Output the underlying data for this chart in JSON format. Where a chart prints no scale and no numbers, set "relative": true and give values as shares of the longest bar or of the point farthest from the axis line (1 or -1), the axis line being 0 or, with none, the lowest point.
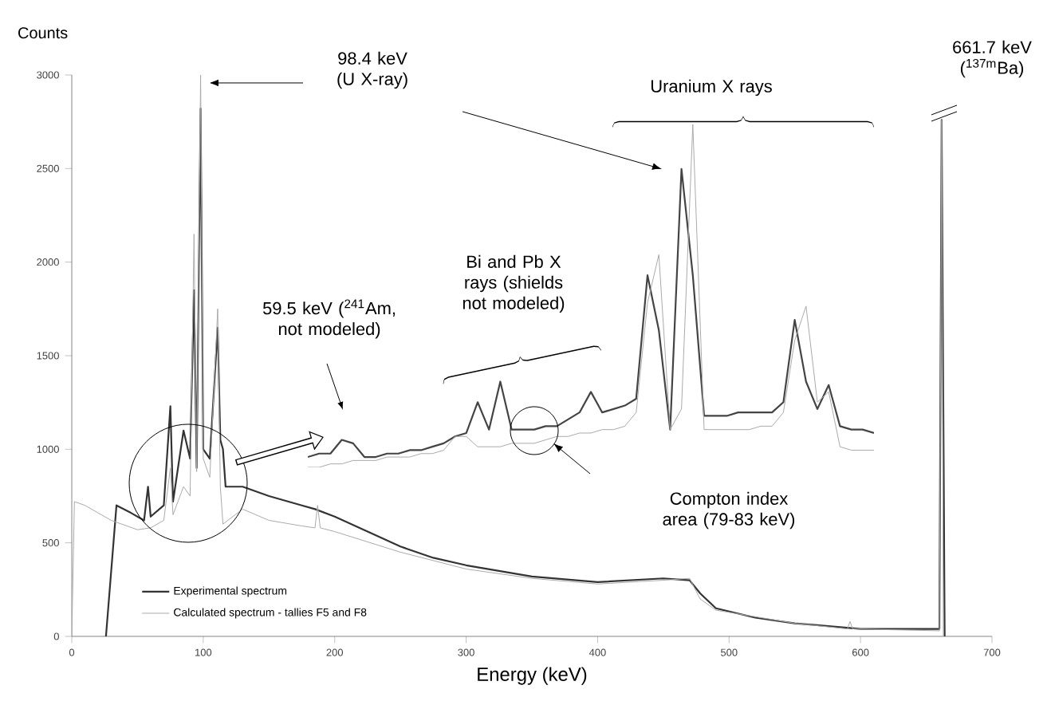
{
  "chart_data": [
    {
      "type": "line",
      "xlabel": "Energy (keV)",
      "ylabel": "Counts",
      "xlim": [
        0,
        700
      ],
      "ylim": [
        0,
        3000
      ],
      "xticks": [
        0,
        100,
        200,
        300,
        400,
        500,
        600,
        700
      ],
      "yticks": [
        0,
        500,
        1000,
        1500,
        2000,
        2500,
        3000
      ],
      "legend": "bottom left",
      "series": [
        {
          "name": "Experimental spectrum",
          "color": "#333333",
          "x": [
            26,
            34,
            45,
            55,
            58,
            60,
            70,
            75,
            77,
            85,
            90,
            93,
            95,
            98,
            100,
            105,
            111,
            113,
            115,
            117,
            130,
            150,
            175,
            185,
            200,
            225,
            250,
            275,
            300,
            350,
            400,
            450,
            470,
            478,
            490,
            520,
            550,
            600,
            660,
            661.7,
            664
          ],
          "values": [
            0,
            700,
            660,
            620,
            800,
            640,
            700,
            1230,
            720,
            1100,
            950,
            1850,
            900,
            2820,
            1000,
            950,
            1650,
            1050,
            1000,
            800,
            800,
            750,
            700,
            680,
            640,
            560,
            480,
            420,
            380,
            320,
            290,
            310,
            300,
            230,
            150,
            100,
            70,
            40,
            40,
            2760,
            0
          ]
        },
        {
          "name": "Calculated spectrum - tallies F5 and F8",
          "color": "#aaaaaa",
          "x": [
            0,
            2,
            10,
            30,
            50,
            60,
            70,
            75,
            77,
            85,
            90,
            93,
            95,
            98,
            100,
            105,
            111,
            113,
            115,
            130,
            150,
            175,
            185,
            187,
            189,
            200,
            250,
            300,
            350,
            400,
            450,
            470,
            478,
            490,
            550,
            590,
            592,
            594,
            660,
            661.7,
            663
          ],
          "values": [
            0,
            720,
            700,
            620,
            570,
            580,
            620,
            900,
            650,
            800,
            750,
            2150,
            880,
            3000,
            950,
            850,
            1750,
            800,
            600,
            680,
            620,
            590,
            580,
            700,
            580,
            560,
            450,
            360,
            310,
            280,
            300,
            310,
            200,
            140,
            70,
            40,
            80,
            40,
            30,
            2760,
            0
          ]
        }
      ],
      "annotations": [
        "98.4 keV (U X-ray)",
        "661.7 keV ($^{137m}$Ba)",
        "Uranium X rays",
        "59.5 keV ($^{241}$Am, not modeled)",
        "Bi and Pb X rays (shields not modeled)",
        "Compton index area (79-83 keV)"
      ]
    },
    {
      "type": "line",
      "relative": true,
      "categories": [
        null,
        null,
        null,
        null,
        null,
        null,
        null,
        null,
        null,
        null,
        null,
        null,
        null,
        null,
        null,
        null,
        null,
        null,
        null,
        null,
        null,
        null,
        null,
        null,
        null,
        null,
        null,
        null,
        null,
        null,
        null,
        null,
        null,
        null,
        null,
        null,
        null,
        null,
        null,
        null,
        null,
        null,
        null,
        null,
        null,
        null,
        null,
        null,
        null,
        null,
        null
      ],
      "series": [
        {
          "color": "#444444",
          "values": [
            0.03,
            0.04,
            0.04,
            0.08,
            0.07,
            0.03,
            0.03,
            0.04,
            0.04,
            0.05,
            0.05,
            0.06,
            0.07,
            0.09,
            0.1,
            0.19,
            0.11,
            0.25,
            0.11,
            0.11,
            0.11,
            0.12,
            0.12,
            0.14,
            0.16,
            0.22,
            0.16,
            0.17,
            0.18,
            0.2,
            0.56,
            0.4,
            0.11,
            0.87,
            0.56,
            0.15,
            0.15,
            0.15,
            0.16,
            0.16,
            0.16,
            0.16,
            0.19,
            0.43,
            0.25,
            0.17,
            0.24,
            0.12,
            0.11,
            0.11,
            0.1
          ]
        },
        {
          "color": "#aaaaaa",
          "values": [
            0,
            0.0,
            0.01,
            0.01,
            0.02,
            0.02,
            0.02,
            0.03,
            0.03,
            0.03,
            0.04,
            0.04,
            0.05,
            0.09,
            0.09,
            0.06,
            0.06,
            0.06,
            0.07,
            0.07,
            0.07,
            0.08,
            0.09,
            0.09,
            0.1,
            0.1,
            0.11,
            0.11,
            0.12,
            0.16,
            0.48,
            0.62,
            0.11,
            0.17,
            1,
            0.11,
            0.11,
            0.11,
            0.11,
            0.11,
            0.12,
            0.12,
            0.16,
            0.37,
            0.47,
            0.19,
            0.22,
            0.06,
            0.05,
            0.05,
            0.05
          ]
        }
      ]
    }
  ]
}
